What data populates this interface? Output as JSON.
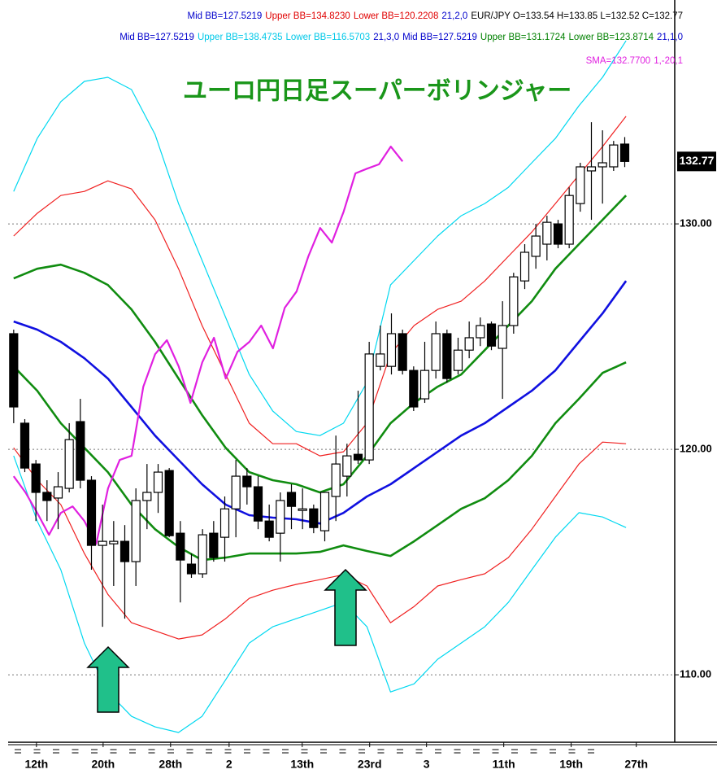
{
  "chart_data": {
    "type": "candlestick",
    "title": "ユーロ円日足スーパーボリンジャー",
    "title_color": "#1a961a",
    "header": [
      [
        {
          "text": "Mid BB=127.5219",
          "color": "#0000cc"
        },
        {
          "text": "Upper BB=134.8230",
          "color": "#e00000"
        },
        {
          "text": "Lower BB=120.2208",
          "color": "#e00000"
        },
        {
          "text": "21,2,0",
          "color": "#0000cc"
        },
        {
          "text": "EUR/JPY O=133.54 H=133.85 L=132.52 C=132.77",
          "color": "#000000"
        }
      ],
      [
        {
          "text": "Mid BB=127.5219",
          "color": "#0000cc"
        },
        {
          "text": "Upper BB=138.4735",
          "color": "#00c8e8"
        },
        {
          "text": "Lower BB=116.5703",
          "color": "#00c8e8"
        },
        {
          "text": "21,3,0",
          "color": "#0000cc"
        },
        {
          "text": "Mid BB=127.5219",
          "color": "#0000cc"
        },
        {
          "text": "Upper BB=131.1724",
          "color": "#008000"
        },
        {
          "text": "Lower BB=123.8714",
          "color": "#008000"
        },
        {
          "text": "21,1,0",
          "color": "#0000cc"
        }
      ],
      [
        {
          "text": "SMA=132.7700",
          "color": "#e020e0"
        },
        {
          "text": "1,-20,1",
          "color": "#e020e0"
        }
      ]
    ],
    "last_price_label": "132.77",
    "candles": {
      "open": [
        125.13,
        121.16,
        119.35,
        118.09,
        117.84,
        118.27,
        121.23,
        118.63,
        115.74,
        115.81,
        115.92,
        115.02,
        117.73,
        118.09,
        119.06,
        116.28,
        114.91,
        114.48,
        116.28,
        116.1,
        117.36,
        118.81,
        118.34,
        116.82,
        116.28,
        118.09,
        117.29,
        117.36,
        116.39,
        117.91,
        118.81,
        119.78,
        119.53,
        123.68,
        123.68,
        125.13,
        123.5,
        122.24,
        123.5,
        125.13,
        123.5,
        124.4,
        124.95,
        125.56,
        124.48,
        125.49,
        127.47,
        128.56,
        129.1,
        130.0,
        129.1,
        130.9,
        132.35,
        132.53,
        132.53,
        133.54
      ],
      "high": [
        125.31,
        121.34,
        119.53,
        118.63,
        118.99,
        121.16,
        122.24,
        118.81,
        117.55,
        116.82,
        116.64,
        118.27,
        119.35,
        119.35,
        119.17,
        116.82,
        115.38,
        116.46,
        116.82,
        117.91,
        119.53,
        119.17,
        118.81,
        117.55,
        118.09,
        118.45,
        118.27,
        117.55,
        118.09,
        120.61,
        120.25,
        122.6,
        124.77,
        125.49,
        126.03,
        125.31,
        123.68,
        124.77,
        125.67,
        125.31,
        124.95,
        125.67,
        125.85,
        125.67,
        126.57,
        127.83,
        129.1,
        130.0,
        130.36,
        130.18,
        131.62,
        132.71,
        134.51,
        134.15,
        133.68,
        133.85
      ],
      "low": [
        121.16,
        118.99,
        116.82,
        116.82,
        116.46,
        118.09,
        118.27,
        114.66,
        112.13,
        113.94,
        112.49,
        113.94,
        116.46,
        117.18,
        116.1,
        113.21,
        114.3,
        114.3,
        115.02,
        115.02,
        116.1,
        117.55,
        116.46,
        115.92,
        115.02,
        116.46,
        116.46,
        116.28,
        115.92,
        116.82,
        117.91,
        119.35,
        119.35,
        123.5,
        123.32,
        123.32,
        121.7,
        122.06,
        123.14,
        122.96,
        123.32,
        124.04,
        124.58,
        124.4,
        122.24,
        125.13,
        127.11,
        128.01,
        128.38,
        128.92,
        128.92,
        130.54,
        130.18,
        130.9,
        132.35,
        132.52
      ],
      "close": [
        121.88,
        119.17,
        118.09,
        117.73,
        118.34,
        120.43,
        118.63,
        115.74,
        115.92,
        115.92,
        115.02,
        117.73,
        118.09,
        118.99,
        116.17,
        115.09,
        114.48,
        116.21,
        115.2,
        117.36,
        118.81,
        118.34,
        116.82,
        116.1,
        117.73,
        117.47,
        117.36,
        116.53,
        118.09,
        119.35,
        119.71,
        119.53,
        124.23,
        124.23,
        125.13,
        123.5,
        121.88,
        123.5,
        125.13,
        123.14,
        124.4,
        124.95,
        125.49,
        124.58,
        125.49,
        127.65,
        128.74,
        129.46,
        130.07,
        129.1,
        131.26,
        132.53,
        132.53,
        132.71,
        133.5,
        132.77
      ]
    },
    "series": [
      {
        "color": "#00d8f0",
        "width": 1.2,
        "x": [
          0,
          2.12,
          4.24,
          6.36,
          8.48,
          10.6,
          12.72,
          14.84,
          16.96,
          19.08,
          21.2,
          23.32,
          25.44,
          27.56,
          29.68,
          31.8,
          33.92,
          36.04,
          38.16,
          40.28,
          42.4,
          44.52,
          46.64,
          48.76,
          50.88,
          53,
          55.12
        ],
        "values": [
          131.44,
          133.79,
          135.42,
          136.32,
          136.5,
          135.96,
          133.97,
          130.9,
          128.38,
          125.85,
          123.32,
          121.7,
          120.79,
          120.61,
          121.16,
          122.96,
          127.29,
          128.38,
          129.46,
          130.36,
          130.9,
          131.62,
          132.71,
          133.79,
          135.24,
          136.5,
          138.12
        ]
      },
      {
        "color": "#00d8f0",
        "width": 1.2,
        "x": [
          0,
          2.12,
          4.24,
          6.36,
          8.48,
          10.6,
          12.72,
          14.84,
          16.96,
          19.08,
          21.2,
          23.32,
          25.44,
          27.56,
          29.68,
          31.8,
          33.92,
          36.04,
          38.16,
          40.28,
          42.4,
          44.52,
          46.64,
          48.76,
          50.88,
          53,
          55.12
        ],
        "values": [
          119.71,
          116.82,
          114.66,
          111.41,
          109.24,
          108.16,
          107.69,
          107.44,
          108.16,
          109.78,
          111.41,
          112.13,
          112.49,
          112.85,
          113.21,
          112.13,
          109.24,
          109.6,
          110.69,
          111.41,
          112.13,
          113.21,
          114.66,
          116.1,
          117.19,
          117.0,
          116.53
        ]
      },
      {
        "color": "#f02020",
        "width": 1.2,
        "x": [
          0,
          2.12,
          4.24,
          6.36,
          8.48,
          10.6,
          12.72,
          14.84,
          16.96,
          19.08,
          21.2,
          23.32,
          25.44,
          27.56,
          29.68,
          31.8,
          33.92,
          36.04,
          38.16,
          40.28,
          42.4,
          44.52,
          46.64,
          48.76,
          50.88,
          53,
          55.12
        ],
        "values": [
          129.46,
          130.47,
          131.26,
          131.44,
          131.91,
          131.55,
          130.18,
          128.01,
          125.49,
          123.32,
          121.16,
          120.25,
          120.25,
          119.71,
          119.89,
          121.16,
          124.23,
          125.49,
          126.21,
          126.57,
          127.47,
          128.56,
          129.64,
          130.9,
          132.17,
          133.43,
          134.77
        ]
      },
      {
        "color": "#f02020",
        "width": 1.2,
        "x": [
          0,
          2.12,
          4.24,
          6.36,
          8.48,
          10.6,
          12.72,
          14.84,
          16.96,
          19.08,
          21.2,
          23.32,
          25.44,
          27.56,
          29.68,
          31.8,
          33.92,
          36.04,
          38.16,
          40.28,
          42.4,
          44.52,
          46.64,
          48.76,
          50.88,
          53,
          55.12
        ],
        "values": [
          120.07,
          118.63,
          117.55,
          115.38,
          113.57,
          112.31,
          111.95,
          111.59,
          111.77,
          112.49,
          113.39,
          113.75,
          114.01,
          114.22,
          114.44,
          113.94,
          112.31,
          113.03,
          113.94,
          114.22,
          114.48,
          115.2,
          116.46,
          117.91,
          119.35,
          120.32,
          120.25
        ]
      },
      {
        "color": "#108c10",
        "width": 2.6,
        "x": [
          0,
          2.12,
          4.24,
          6.36,
          8.48,
          10.6,
          12.72,
          14.84,
          16.96,
          19.08,
          21.2,
          23.32,
          25.44,
          27.56,
          29.68,
          31.8,
          33.92,
          36.04,
          38.16,
          40.28,
          42.4,
          44.52,
          46.64,
          48.76,
          50.88,
          53,
          55.12
        ],
        "values": [
          127.58,
          128.01,
          128.19,
          127.83,
          127.29,
          126.21,
          124.77,
          123.14,
          121.52,
          120.07,
          118.99,
          118.63,
          118.45,
          118.09,
          118.45,
          119.71,
          121.16,
          122.06,
          122.78,
          123.32,
          124.4,
          125.49,
          126.57,
          128.01,
          129.1,
          130.18,
          131.26
        ]
      },
      {
        "color": "#108c10",
        "width": 2.6,
        "x": [
          0,
          2.12,
          4.24,
          6.36,
          8.48,
          10.6,
          12.72,
          14.84,
          16.96,
          19.08,
          21.2,
          23.32,
          25.44,
          27.56,
          29.68,
          31.8,
          33.92,
          36.04,
          38.16,
          40.28,
          42.4,
          44.52,
          46.64,
          48.76,
          50.88,
          53,
          55.12
        ],
        "values": [
          123.68,
          122.6,
          121.16,
          120.07,
          118.99,
          117.55,
          116.46,
          115.67,
          115.09,
          115.2,
          115.38,
          115.38,
          115.38,
          115.45,
          115.74,
          115.49,
          115.27,
          115.92,
          116.64,
          117.36,
          117.83,
          118.63,
          119.71,
          121.16,
          122.24,
          123.39,
          123.86
        ]
      },
      {
        "color": "#1010e0",
        "width": 2.6,
        "x": [
          0,
          2.12,
          4.24,
          6.36,
          8.48,
          10.6,
          12.72,
          14.84,
          16.96,
          19.08,
          21.2,
          23.32,
          25.44,
          27.56,
          29.68,
          31.8,
          33.92,
          36.04,
          38.16,
          40.28,
          42.4,
          44.52,
          46.64,
          48.76,
          50.88,
          53,
          55.12
        ],
        "values": [
          125.67,
          125.31,
          124.77,
          124.04,
          123.14,
          121.88,
          120.61,
          119.53,
          118.45,
          117.55,
          117.08,
          116.97,
          116.9,
          116.71,
          117.18,
          117.91,
          118.45,
          119.17,
          119.89,
          120.61,
          121.16,
          121.88,
          122.6,
          123.5,
          124.77,
          126.03,
          127.47
        ]
      },
      {
        "color": "#e020e0",
        "width": 2.2,
        "x": [
          0,
          1.06,
          2.12,
          3.18,
          4.24,
          5.3,
          6.36,
          7.43,
          8.49,
          9.55,
          10.61,
          11.67,
          12.73,
          13.79,
          14.85,
          15.91,
          16.97,
          18.03,
          19.09,
          20.15,
          21.22,
          22.28,
          23.34,
          24.4,
          25.46,
          26.52,
          27.58,
          28.64,
          29.7,
          30.76,
          31.82,
          32.88,
          33.94,
          35.0
        ],
        "values": [
          118.81,
          118.09,
          117.18,
          116.21,
          117.18,
          117.47,
          116.82,
          115.81,
          118.27,
          119.53,
          119.71,
          122.78,
          124.22,
          124.84,
          123.68,
          122.06,
          123.86,
          124.95,
          123.14,
          124.33,
          124.77,
          125.49,
          124.48,
          126.28,
          127.0,
          128.56,
          129.82,
          129.17,
          130.54,
          132.24,
          132.45,
          132.64,
          133.43,
          132.77
        ]
      }
    ],
    "xlim": [
      -0.5,
      59.5
    ],
    "xticks": [
      {
        "value": 2.05,
        "label": "12th"
      },
      {
        "value": 8.05,
        "label": "20th"
      },
      {
        "value": 14.12,
        "label": "28th"
      },
      {
        "value": 19.39,
        "label": "2"
      },
      {
        "value": 25.97,
        "label": "13th"
      },
      {
        "value": 32.04,
        "label": "23rd"
      },
      {
        "value": 37.16,
        "label": "3"
      },
      {
        "value": 44.11,
        "label": "11th"
      },
      {
        "value": 50.18,
        "label": "19th"
      },
      {
        "value": 56.04,
        "label": "27th"
      }
    ],
    "ylim": [
      107.08,
      139.93
    ],
    "yticks": [
      {
        "value": 110,
        "label": "110.00"
      },
      {
        "value": 120,
        "label": "120.00"
      },
      {
        "value": 130,
        "label": "130.00"
      }
    ],
    "grid": true
  }
}
